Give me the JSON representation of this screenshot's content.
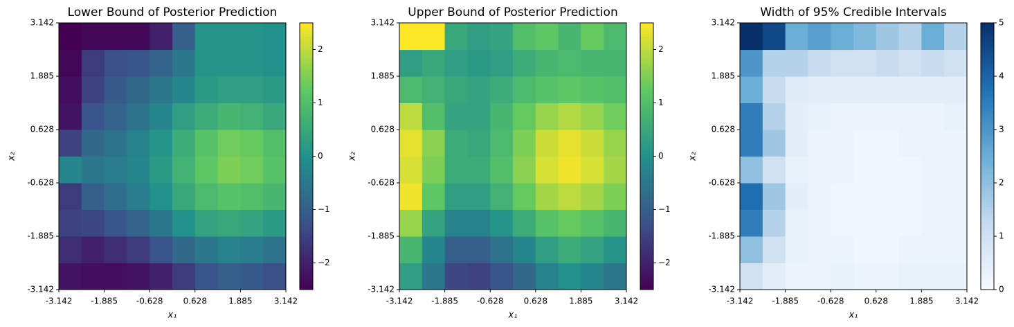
{
  "chart_data": [
    {
      "type": "heatmap",
      "title": "Lower Bound of Posterior Prediction",
      "xlabel": "x₁",
      "ylabel": "x₂",
      "x": [
        -2.827,
        -2.199,
        -1.571,
        -0.942,
        -0.314,
        0.314,
        0.942,
        1.571,
        2.199,
        2.827
      ],
      "y": [
        -2.827,
        -2.199,
        -1.571,
        -0.942,
        -0.314,
        0.314,
        0.942,
        1.571,
        2.199,
        2.827
      ],
      "z": [
        [
          -2.2,
          -2.3,
          -2.3,
          -2.2,
          -2.0,
          -1.6,
          -1.2,
          -1.0,
          -1.1,
          -1.3
        ],
        [
          -1.8,
          -2.0,
          -1.8,
          -1.6,
          -1.2,
          -0.8,
          -0.5,
          -0.3,
          -0.4,
          -0.6
        ],
        [
          -1.5,
          -1.4,
          -1.2,
          -0.9,
          -0.5,
          0.0,
          0.4,
          0.5,
          0.4,
          0.2
        ],
        [
          -1.6,
          -1.0,
          -0.7,
          -0.4,
          0.0,
          0.5,
          0.9,
          1.1,
          1.0,
          0.8
        ],
        [
          -0.2,
          -0.5,
          -0.4,
          -0.2,
          0.2,
          0.7,
          1.2,
          1.5,
          1.4,
          1.1
        ],
        [
          -1.5,
          -0.8,
          -0.6,
          -0.3,
          0.1,
          0.6,
          1.1,
          1.4,
          1.3,
          1.0
        ],
        [
          -2.2,
          -1.2,
          -0.9,
          -0.6,
          -0.2,
          0.3,
          0.6,
          0.8,
          0.7,
          0.5
        ],
        [
          -2.3,
          -1.5,
          -1.1,
          -0.8,
          -0.5,
          -0.2,
          0.2,
          0.3,
          0.3,
          0.2
        ],
        [
          -2.4,
          -1.6,
          -1.3,
          -1.2,
          -0.9,
          -0.5,
          0.1,
          0.1,
          0.1,
          0.0
        ],
        [
          -2.5,
          -2.4,
          -2.4,
          -2.4,
          -2.0,
          -1.0,
          0.1,
          0.1,
          0.1,
          0.0
        ]
      ],
      "xlim": [
        -3.142,
        3.142
      ],
      "ylim": [
        -3.142,
        3.142
      ],
      "xticks": [
        -3.142,
        -1.885,
        -0.628,
        0.628,
        1.885,
        3.142
      ],
      "yticks": [
        -3.142,
        -1.885,
        -0.628,
        0.628,
        1.885,
        3.142
      ],
      "colormap": "viridis",
      "clim": [
        -2.5,
        2.5
      ],
      "cticks": [
        {
          "value": -2,
          "label": "−2"
        },
        {
          "value": -1,
          "label": "−1"
        },
        0,
        1,
        2
      ]
    },
    {
      "type": "heatmap",
      "title": "Upper Bound of Posterior Prediction",
      "xlabel": "x₁",
      "ylabel": "x₂",
      "x": [
        -2.827,
        -2.199,
        -1.571,
        -0.942,
        -0.314,
        0.314,
        0.942,
        1.571,
        2.199,
        2.827
      ],
      "y": [
        -2.827,
        -2.199,
        -1.571,
        -0.942,
        -0.314,
        0.314,
        0.942,
        1.571,
        2.199,
        2.827
      ],
      "z": [
        [
          0.3,
          -0.5,
          -1.4,
          -1.5,
          -1.2,
          -0.8,
          -0.3,
          0.0,
          -0.2,
          -0.5
        ],
        [
          0.8,
          -0.2,
          -1.0,
          -1.0,
          -0.6,
          -0.2,
          0.3,
          0.6,
          0.4,
          0.1
        ],
        [
          1.7,
          0.4,
          -0.3,
          -0.3,
          0.1,
          0.6,
          1.1,
          1.3,
          1.1,
          0.8
        ],
        [
          2.4,
          1.2,
          0.3,
          0.3,
          0.7,
          1.3,
          1.8,
          2.0,
          1.8,
          1.5
        ],
        [
          2.2,
          1.5,
          0.6,
          0.6,
          1.0,
          1.6,
          2.2,
          2.4,
          2.2,
          1.8
        ],
        [
          2.3,
          1.6,
          0.6,
          0.5,
          0.9,
          1.5,
          2.1,
          2.3,
          2.1,
          1.7
        ],
        [
          2.0,
          1.0,
          0.4,
          0.4,
          0.8,
          1.3,
          1.7,
          1.9,
          1.7,
          1.4
        ],
        [
          0.9,
          0.7,
          0.5,
          0.4,
          0.6,
          0.9,
          1.1,
          1.2,
          1.1,
          1.0
        ],
        [
          0.3,
          0.5,
          0.3,
          0.2,
          0.3,
          0.6,
          0.8,
          0.9,
          0.8,
          0.8
        ],
        [
          2.5,
          2.5,
          0.5,
          0.3,
          0.4,
          1.0,
          1.2,
          0.8,
          1.3,
          0.9
        ]
      ],
      "xlim": [
        -3.142,
        3.142
      ],
      "ylim": [
        -3.142,
        3.142
      ],
      "xticks": [
        -3.142,
        -1.885,
        -0.628,
        0.628,
        1.885,
        3.142
      ],
      "yticks": [
        -3.142,
        -1.885,
        -0.628,
        0.628,
        1.885,
        3.142
      ],
      "colormap": "viridis",
      "clim": [
        -2.5,
        2.5
      ],
      "cticks": [
        {
          "value": -2,
          "label": "−2"
        },
        {
          "value": -1,
          "label": "−1"
        },
        0,
        1,
        2
      ]
    },
    {
      "type": "heatmap",
      "title": "Width of 95% Credible Intervals",
      "xlabel": "x₁",
      "ylabel": "x₂",
      "x": [
        -2.827,
        -2.199,
        -1.571,
        -0.942,
        -0.314,
        0.314,
        0.942,
        1.571,
        2.199,
        2.827
      ],
      "y": [
        -2.827,
        -2.199,
        -1.571,
        -0.942,
        -0.314,
        0.314,
        0.942,
        1.571,
        2.199,
        2.827
      ],
      "z": [
        [
          1.0,
          0.5,
          0.3,
          0.3,
          0.4,
          0.3,
          0.3,
          0.4,
          0.4,
          0.4
        ],
        [
          2.0,
          1.0,
          0.4,
          0.3,
          0.3,
          0.2,
          0.2,
          0.3,
          0.3,
          0.3
        ],
        [
          3.5,
          1.5,
          0.4,
          0.3,
          0.2,
          0.2,
          0.2,
          0.2,
          0.3,
          0.3
        ],
        [
          3.8,
          1.8,
          0.5,
          0.3,
          0.2,
          0.2,
          0.2,
          0.2,
          0.3,
          0.3
        ],
        [
          2.0,
          1.0,
          0.4,
          0.3,
          0.3,
          0.2,
          0.2,
          0.2,
          0.3,
          0.3
        ],
        [
          3.5,
          1.8,
          0.5,
          0.3,
          0.3,
          0.2,
          0.2,
          0.3,
          0.3,
          0.3
        ],
        [
          3.5,
          1.5,
          0.5,
          0.4,
          0.3,
          0.3,
          0.3,
          0.3,
          0.3,
          0.4
        ],
        [
          2.5,
          1.2,
          0.6,
          0.5,
          0.5,
          0.5,
          0.5,
          0.5,
          0.5,
          0.5
        ],
        [
          3.0,
          1.5,
          1.5,
          1.2,
          1.0,
          1.0,
          1.2,
          1.0,
          1.2,
          1.0
        ],
        [
          5.0,
          4.5,
          2.5,
          2.8,
          2.5,
          2.2,
          1.8,
          1.5,
          2.5,
          1.5
        ]
      ],
      "xlim": [
        -3.142,
        3.142
      ],
      "ylim": [
        -3.142,
        3.142
      ],
      "xticks": [
        -3.142,
        -1.885,
        -0.628,
        0.628,
        1.885,
        3.142
      ],
      "yticks": [
        -3.142,
        -1.885,
        -0.628,
        0.628,
        1.885,
        3.142
      ],
      "colormap": "Blues",
      "clim": [
        0,
        5
      ],
      "cticks": [
        0,
        1,
        2,
        3,
        4,
        5
      ]
    }
  ]
}
